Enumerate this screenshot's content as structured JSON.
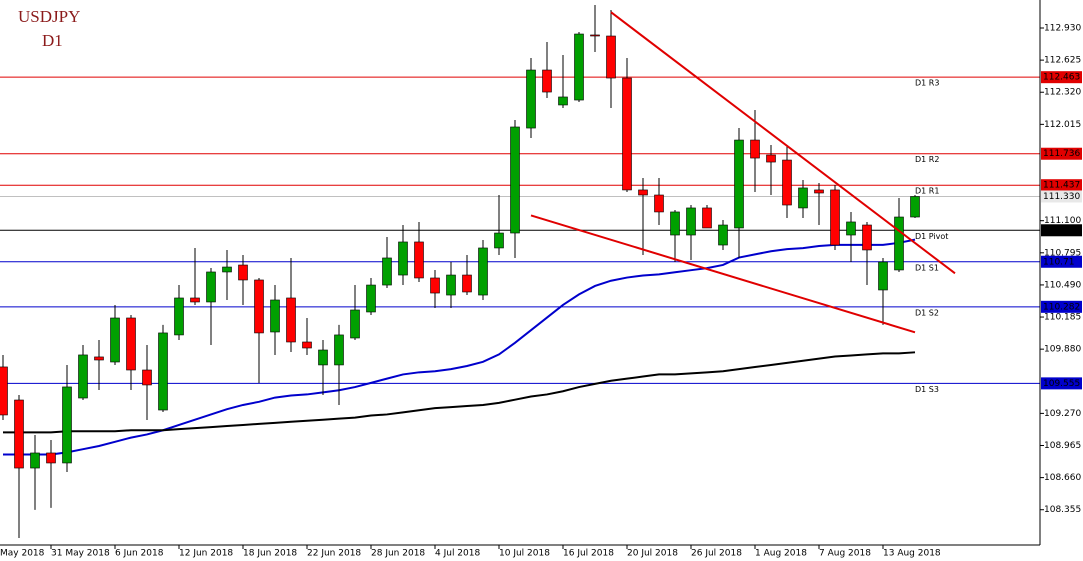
{
  "chart_data": {
    "type": "candlestick",
    "title": "USDJPY",
    "subtitle": "D1",
    "x_axis_edge_label": "May 2018",
    "categories": [
      null,
      null,
      null,
      "31 May 2018",
      null,
      null,
      null,
      "6 Jun 2018",
      null,
      null,
      null,
      "12 Jun 2018",
      null,
      null,
      null,
      "18 Jun 2018",
      null,
      null,
      null,
      "22 Jun 2018",
      null,
      null,
      null,
      "28 Jun 2018",
      null,
      null,
      null,
      "4 Jul 2018",
      null,
      null,
      null,
      "10 Jul 2018",
      null,
      null,
      null,
      "16 Jul 2018",
      null,
      null,
      null,
      "20 Jul 2018",
      null,
      null,
      null,
      "26 Jul 2018",
      null,
      null,
      null,
      "1 Aug 2018",
      null,
      null,
      null,
      "7 Aug 2018",
      null,
      null,
      null,
      "13 Aug 2018",
      null,
      null
    ],
    "open": [
      109.711,
      109.397,
      108.751,
      108.894,
      108.799,
      109.416,
      109.806,
      109.758,
      110.176,
      109.682,
      109.302,
      110.015,
      110.366,
      110.328,
      110.613,
      110.679,
      110.537,
      110.043,
      110.366,
      109.948,
      109.73,
      109.73,
      109.986,
      110.233,
      110.489,
      110.584,
      110.898,
      110.556,
      110.394,
      110.584,
      110.394,
      110.841,
      110.983,
      111.98,
      112.531,
      112.199,
      112.246,
      112.864,
      112.854,
      112.455,
      111.392,
      111.344,
      110.964,
      110.964,
      111.221,
      110.869,
      111.031,
      111.866,
      111.724,
      111.676,
      111.221,
      111.392,
      111.392,
      110.964,
      111.059,
      110.442,
      110.632,
      111.135
    ],
    "high": [
      109.825,
      109.445,
      109.065,
      109.017,
      109.73,
      109.92,
      109.967,
      110.299,
      110.204,
      109.92,
      110.11,
      110.489,
      110.841,
      110.651,
      110.822,
      110.774,
      110.556,
      110.489,
      110.746,
      110.176,
      109.967,
      110.11,
      110.489,
      110.556,
      110.945,
      111.059,
      111.088,
      110.632,
      110.708,
      110.774,
      110.917,
      111.344,
      112.056,
      112.645,
      112.797,
      112.674,
      112.892,
      113.149,
      113.101,
      112.645,
      111.506,
      111.506,
      111.202,
      111.249,
      111.249,
      111.107,
      111.98,
      112.151,
      111.819,
      111.819,
      111.487,
      111.458,
      111.439,
      111.183,
      111.088,
      110.746,
      111.316,
      111.344
    ],
    "low": [
      109.207,
      108.087,
      108.353,
      108.372,
      108.713,
      109.397,
      109.492,
      109.73,
      109.492,
      109.207,
      109.283,
      109.967,
      110.299,
      109.92,
      110.347,
      110.299,
      109.559,
      109.825,
      109.853,
      109.825,
      109.445,
      109.35,
      109.967,
      110.204,
      110.461,
      110.489,
      110.518,
      110.271,
      110.271,
      110.394,
      110.347,
      110.774,
      110.746,
      111.885,
      112.265,
      112.17,
      112.227,
      112.702,
      112.17,
      111.373,
      110.774,
      111.059,
      110.708,
      110.727,
      111.031,
      110.822,
      110.746,
      111.373,
      111.344,
      111.126,
      111.126,
      111.059,
      110.822,
      110.708,
      110.489,
      110.11,
      110.613,
      111.126
    ],
    "close": [
      109.255,
      108.751,
      108.894,
      108.799,
      109.521,
      109.825,
      109.777,
      110.176,
      109.682,
      109.54,
      110.034,
      110.366,
      110.328,
      110.613,
      110.66,
      110.537,
      110.034,
      110.347,
      109.948,
      109.891,
      109.872,
      110.015,
      110.252,
      110.489,
      110.746,
      110.898,
      110.556,
      110.413,
      110.584,
      110.423,
      110.841,
      110.983,
      111.99,
      112.531,
      112.322,
      112.275,
      112.873,
      112.854,
      112.455,
      111.392,
      111.344,
      111.183,
      111.183,
      111.221,
      111.031,
      111.059,
      111.866,
      111.695,
      111.657,
      111.249,
      111.411,
      111.363,
      110.869,
      111.088,
      110.822,
      110.708,
      111.135,
      111.33
    ],
    "up_color": "#00a000",
    "down_color": "#ff0000",
    "series": [
      {
        "color": "#0000cc",
        "values": [
          108.88,
          108.88,
          108.88,
          108.88,
          108.9,
          108.93,
          108.96,
          109.0,
          109.04,
          109.07,
          109.11,
          109.16,
          109.21,
          109.26,
          109.31,
          109.35,
          109.38,
          109.42,
          109.44,
          109.45,
          109.47,
          109.49,
          109.52,
          109.56,
          109.6,
          109.64,
          109.66,
          109.67,
          109.69,
          109.72,
          109.76,
          109.83,
          109.94,
          110.06,
          110.18,
          110.3,
          110.4,
          110.48,
          110.53,
          110.56,
          110.58,
          110.59,
          110.61,
          110.63,
          110.65,
          110.68,
          110.75,
          110.78,
          110.81,
          110.83,
          110.84,
          110.86,
          110.87,
          110.87,
          110.87,
          110.87,
          110.89,
          110.92
        ]
      },
      {
        "color": "#000000",
        "values": [
          109.09,
          109.09,
          109.09,
          109.09,
          109.1,
          109.1,
          109.1,
          109.1,
          109.11,
          109.11,
          109.11,
          109.12,
          109.13,
          109.14,
          109.15,
          109.16,
          109.17,
          109.18,
          109.19,
          109.2,
          109.21,
          109.22,
          109.23,
          109.25,
          109.26,
          109.28,
          109.3,
          109.32,
          109.33,
          109.34,
          109.35,
          109.37,
          109.4,
          109.43,
          109.45,
          109.48,
          109.52,
          109.55,
          109.58,
          109.6,
          109.62,
          109.64,
          109.64,
          109.65,
          109.66,
          109.67,
          109.69,
          109.71,
          109.73,
          109.75,
          109.77,
          109.79,
          109.81,
          109.82,
          109.83,
          109.84,
          109.84,
          109.85
        ]
      }
    ],
    "levels": [
      {
        "name": "D1 R3",
        "value": 112.463,
        "color": "#e00000"
      },
      {
        "name": "D1 R2",
        "value": 111.736,
        "color": "#e00000"
      },
      {
        "name": "D1 R1",
        "value": 111.437,
        "color": "#e00000"
      },
      {
        "name": "D1 Pivot",
        "value": 111.009,
        "color": "#000000"
      },
      {
        "name": "D1 S1",
        "value": 110.71,
        "color": "#0000cc"
      },
      {
        "name": "D1 S2",
        "value": 110.282,
        "color": "#0000cc"
      },
      {
        "name": "D1 S3",
        "value": 109.555,
        "color": "#0000cc"
      }
    ],
    "current_price": {
      "value": 111.33,
      "label": "111.330",
      "color": "#c0c0c0"
    },
    "trend_lines": [
      {
        "color": "#e00000",
        "x": [
          38,
          59.5
        ],
        "y": [
          113.08,
          110.6
        ]
      },
      {
        "color": "#e00000",
        "x": [
          33,
          57
        ],
        "y": [
          111.15,
          110.04
        ]
      }
    ],
    "ylim": [
      108.02,
      113.196
    ],
    "yticks": [
      {
        "value": 108.355,
        "label": "108.355"
      },
      {
        "value": 108.66,
        "label": "108.660"
      },
      {
        "value": 108.965,
        "label": "108.965"
      },
      {
        "value": 109.27,
        "label": "109.270"
      },
      {
        "value": 109.88,
        "label": "109.880"
      },
      {
        "value": 110.185,
        "label": "110.185"
      },
      {
        "value": 110.49,
        "label": "110.490"
      },
      {
        "value": 110.795,
        "label": "110.795"
      },
      {
        "value": 111.1,
        "label": "111.100"
      },
      {
        "value": 112.015,
        "label": "112.015"
      },
      {
        "value": 112.32,
        "label": "112.320"
      },
      {
        "value": 112.625,
        "label": "112.625"
      },
      {
        "value": 112.93,
        "label": "112.930"
      }
    ]
  }
}
